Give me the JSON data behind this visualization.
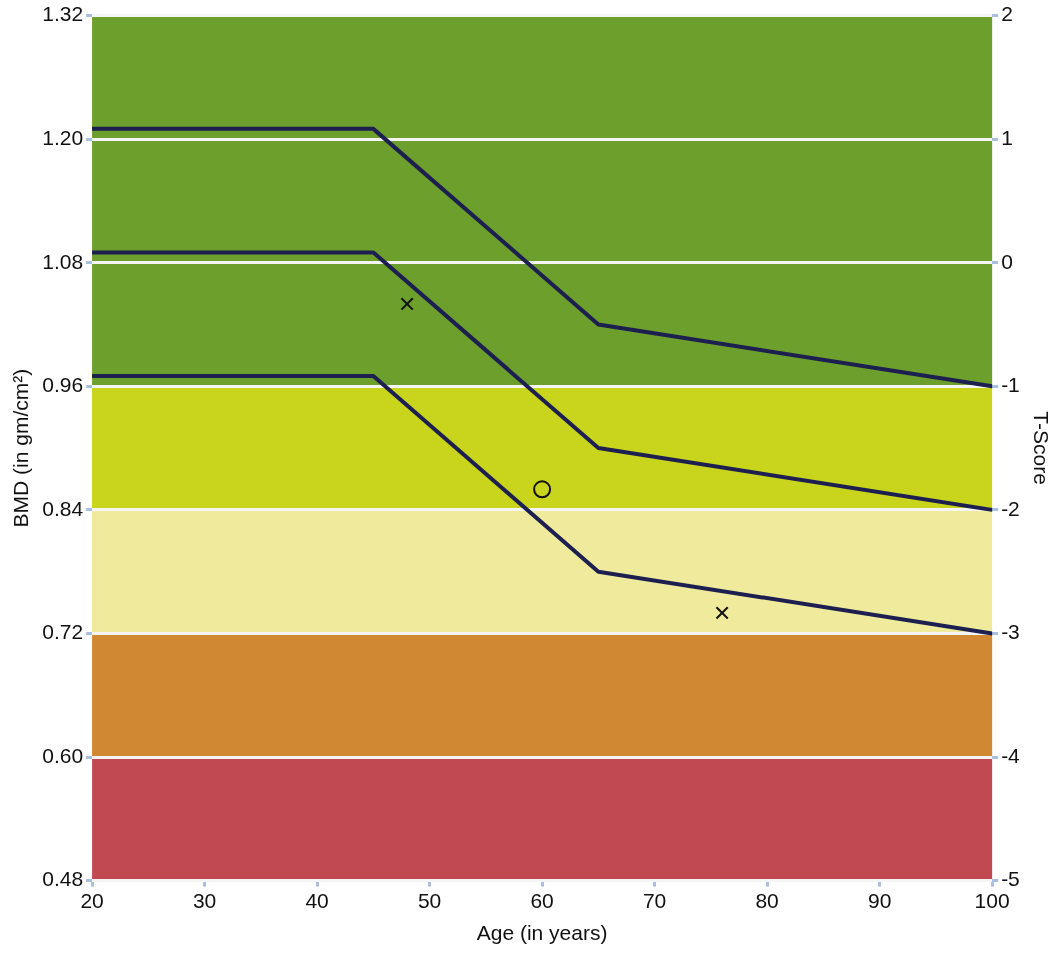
{
  "chart_data": {
    "type": "line",
    "xlabel": "Age (in years)",
    "ylabel": "BMD (in gm/cm²)",
    "y2label": "T-Score",
    "series": [
      {
        "color": "#1c1f4f",
        "x": [
          20,
          45,
          65,
          100
        ],
        "values": [
          1.21,
          1.21,
          1.02,
          0.96
        ]
      },
      {
        "color": "#1c1f4f",
        "x": [
          20,
          45,
          65,
          100
        ],
        "values": [
          1.09,
          1.09,
          0.9,
          0.84
        ]
      },
      {
        "color": "#1c1f4f",
        "x": [
          20,
          45,
          65,
          100
        ],
        "values": [
          0.97,
          0.97,
          0.78,
          0.72
        ]
      },
      {
        "type": "scatter",
        "color": "#111111",
        "marker": "cross",
        "x": [
          48
        ],
        "values": [
          1.04
        ]
      },
      {
        "type": "scatter",
        "color": "#111111",
        "marker": "circle",
        "x": [
          60
        ],
        "values": [
          0.86
        ]
      },
      {
        "type": "scatter",
        "color": "#111111",
        "marker": "cross",
        "x": [
          76
        ],
        "values": [
          0.74
        ]
      }
    ],
    "xlim": [
      20,
      100
    ],
    "xticks": [
      20,
      30,
      40,
      50,
      60,
      70,
      80,
      90,
      100
    ],
    "ylim": [
      0.48,
      1.32
    ],
    "yticks": [
      0.48,
      {
        "value": 0.6,
        "label": "0.60"
      },
      0.72,
      0.84,
      0.96,
      1.08,
      {
        "value": 1.2,
        "label": "1.20"
      },
      1.32
    ],
    "y2lim": [
      -5,
      2
    ],
    "y2ticks": [
      -5,
      -4,
      -3,
      -2,
      -1,
      0,
      1,
      2
    ],
    "bands": [
      {
        "axis": "y",
        "from": 0.96,
        "to": 1.32,
        "color": "#6c9f2c"
      },
      {
        "axis": "y",
        "from": 0.84,
        "to": 0.96,
        "color": "#c9d41c"
      },
      {
        "axis": "y",
        "from": 0.72,
        "to": 0.84,
        "color": "#f0eb9c"
      },
      {
        "axis": "y",
        "from": 0.6,
        "to": 0.72,
        "color": "#d08932"
      },
      {
        "axis": "y",
        "from": 0.48,
        "to": 0.6,
        "color": "#c14a52"
      }
    ],
    "grid": "y",
    "marker": "none",
    "line_style": "solid",
    "legend": false
  }
}
